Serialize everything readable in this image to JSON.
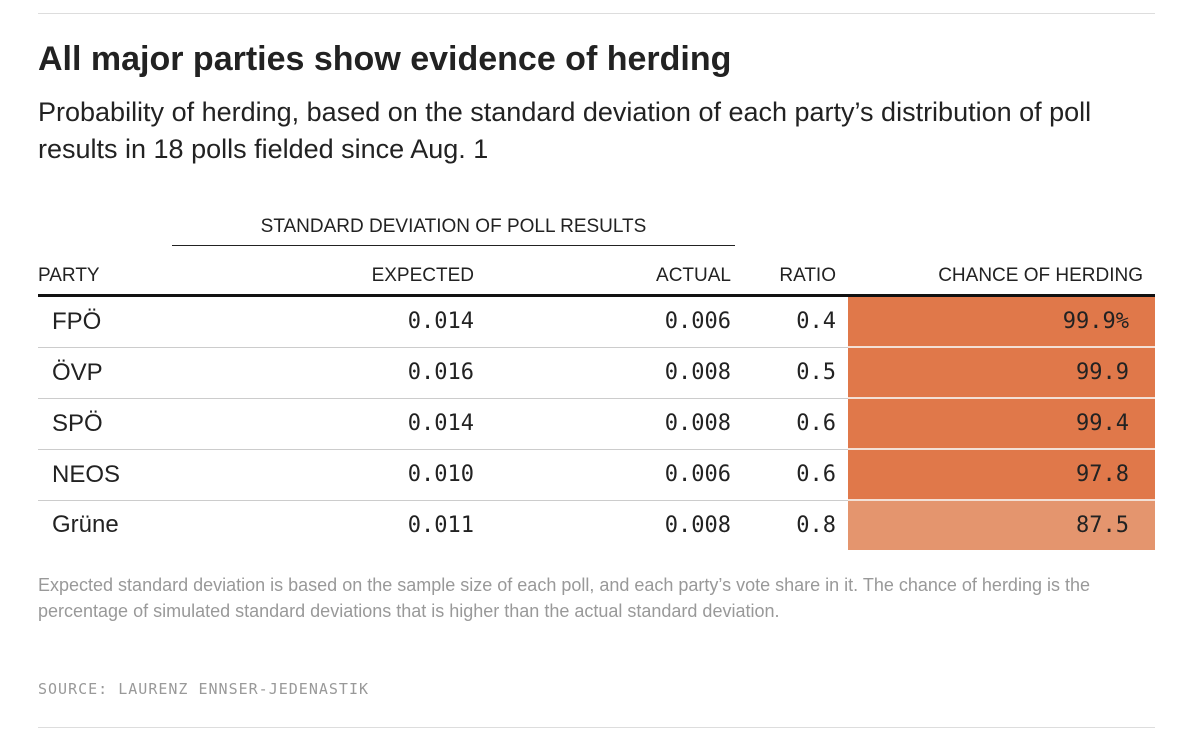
{
  "title": "All major parties show evidence of herding",
  "subtitle": "Probability of herding, based on the standard deviation of each party’s distribution of poll results in 18 polls fielded since Aug. 1",
  "group_header": "STANDARD DEVIATION OF POLL RESULTS",
  "note": "Expected standard deviation is based on the sample size of each poll, and each party’s vote share in it. The chance of herding is the percentage of simulated standard deviations that is higher than the actual standard deviation.",
  "source": "SOURCE: LAURENZ ENNSER-JEDENASTIK",
  "colors": {
    "high": "#e0784a",
    "low": "#e4956e"
  },
  "chart_data": {
    "type": "table",
    "columns": [
      "PARTY",
      "EXPECTED",
      "ACTUAL",
      "RATIO",
      "CHANCE OF HERDING"
    ],
    "rows": [
      {
        "party": "FPÖ",
        "expected": "0.014",
        "actual": "0.006",
        "ratio": "0.4",
        "chance": "99.9%",
        "chance_value": 99.9
      },
      {
        "party": "ÖVP",
        "expected": "0.016",
        "actual": "0.008",
        "ratio": "0.5",
        "chance": "99.9",
        "chance_value": 99.9
      },
      {
        "party": "SPÖ",
        "expected": "0.014",
        "actual": "0.008",
        "ratio": "0.6",
        "chance": "99.4",
        "chance_value": 99.4
      },
      {
        "party": "NEOS",
        "expected": "0.010",
        "actual": "0.006",
        "ratio": "0.6",
        "chance": "97.8",
        "chance_value": 97.8
      },
      {
        "party": "Grüne",
        "expected": "0.011",
        "actual": "0.008",
        "ratio": "0.8",
        "chance": "87.5",
        "chance_value": 87.5
      }
    ]
  }
}
